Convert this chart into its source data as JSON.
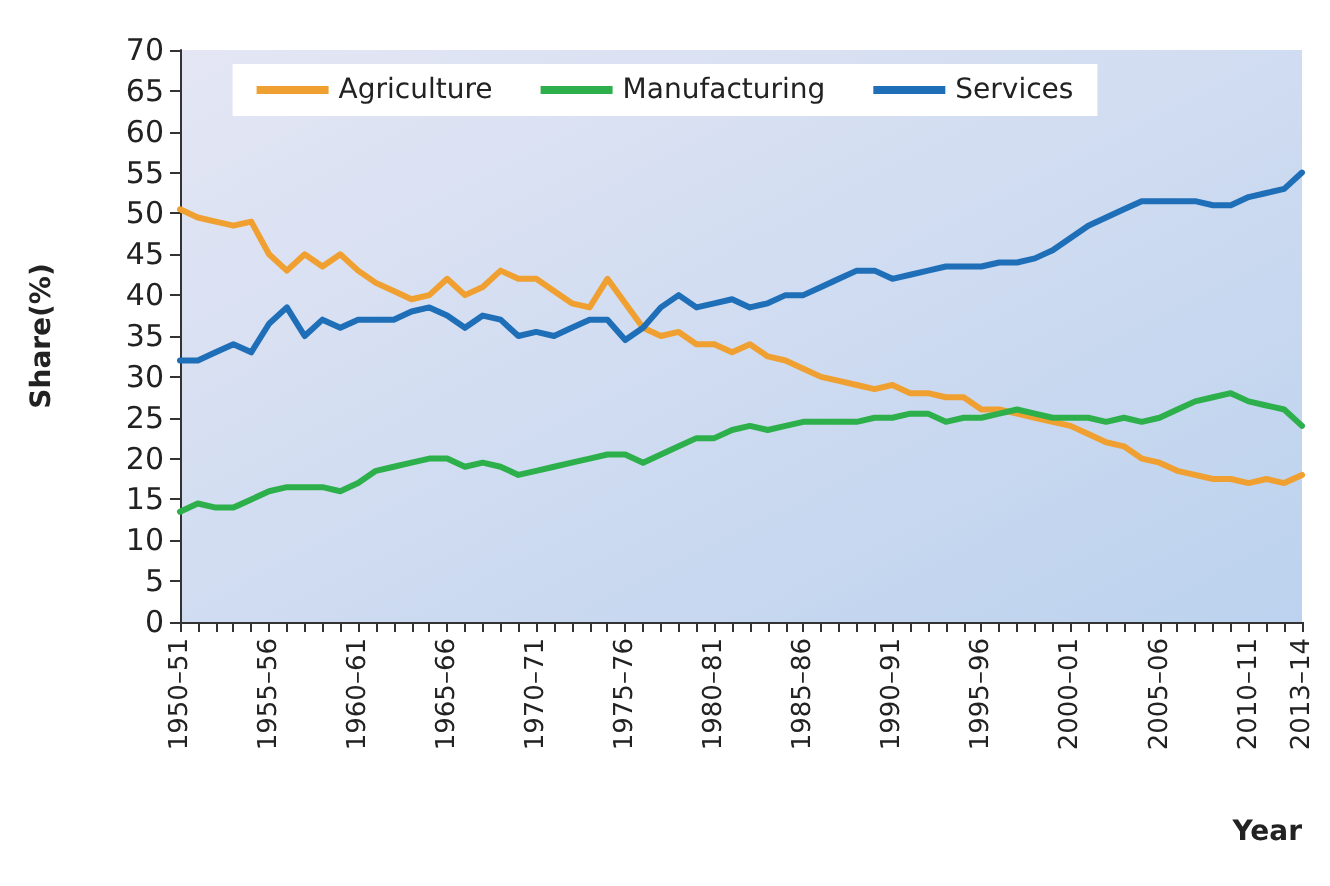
{
  "chart_data": {
    "type": "line",
    "ylabel": "Share(%)",
    "xlabel": "Year",
    "categories": [
      "1950–51",
      null,
      null,
      null,
      null,
      "1955–56",
      null,
      null,
      null,
      null,
      "1960–61",
      null,
      null,
      null,
      null,
      "1965–66",
      null,
      null,
      null,
      null,
      "1970–71",
      null,
      null,
      null,
      null,
      "1975–76",
      null,
      null,
      null,
      null,
      "1980–81",
      null,
      null,
      null,
      null,
      "1985–86",
      null,
      null,
      null,
      null,
      "1990–91",
      null,
      null,
      null,
      null,
      "1995–96",
      null,
      null,
      null,
      null,
      "2000–01",
      null,
      null,
      null,
      null,
      "2005–06",
      null,
      null,
      null,
      null,
      "2010–11",
      null,
      null,
      "2013–14"
    ],
    "series": [
      {
        "name": "Agriculture",
        "color": "#f0a030",
        "values": [
          50.5,
          49.5,
          49,
          48.5,
          49,
          45,
          43,
          45,
          43.5,
          45,
          43,
          41.5,
          40.5,
          39.5,
          40,
          42,
          40,
          41,
          43,
          42,
          42,
          40.5,
          39,
          38.5,
          42,
          39,
          36,
          35,
          35.5,
          34,
          34,
          33,
          34,
          32.5,
          32,
          31,
          30,
          29.5,
          29,
          28.5,
          29,
          28,
          28,
          27.5,
          27.5,
          26,
          26,
          25.5,
          25,
          24.5,
          24,
          23,
          22,
          21.5,
          20,
          19.5,
          18.5,
          18,
          17.5,
          17.5,
          17,
          17.5,
          17,
          18
        ]
      },
      {
        "name": "Manufacturing",
        "color": "#2db04b",
        "values": [
          13.5,
          14.5,
          14,
          14,
          15,
          16,
          16.5,
          16.5,
          16.5,
          16,
          17,
          18.5,
          19,
          19.5,
          20,
          20,
          19,
          19.5,
          19,
          18,
          18.5,
          19,
          19.5,
          20,
          20.5,
          20.5,
          19.5,
          20.5,
          21.5,
          22.5,
          22.5,
          23.5,
          24,
          23.5,
          24,
          24.5,
          24.5,
          24.5,
          24.5,
          25,
          25,
          25.5,
          25.5,
          24.5,
          25,
          25,
          25.5,
          26,
          25.5,
          25,
          25,
          25,
          24.5,
          25,
          24.5,
          25,
          26,
          27,
          27.5,
          28,
          27,
          26.5,
          26,
          24
        ]
      },
      {
        "name": "Services",
        "color": "#1f6fb8",
        "values": [
          32,
          32,
          33,
          34,
          33,
          36.5,
          38.5,
          35,
          37,
          36,
          37,
          37,
          37,
          38,
          38.5,
          37.5,
          36,
          37.5,
          37,
          35,
          35.5,
          35,
          36,
          37,
          37,
          34.5,
          36,
          38.5,
          40,
          38.5,
          39,
          39.5,
          38.5,
          39,
          40,
          40,
          41,
          42,
          43,
          43,
          42,
          42.5,
          43,
          43.5,
          43.5,
          43.5,
          44,
          44,
          44.5,
          45.5,
          47,
          48.5,
          49.5,
          50.5,
          51.5,
          51.5,
          51.5,
          51.5,
          51,
          51,
          52,
          52.5,
          53,
          55
        ]
      }
    ],
    "ylim": [
      0,
      70
    ],
    "yticks": [
      0,
      5,
      10,
      15,
      20,
      25,
      30,
      35,
      40,
      45,
      50,
      55,
      60,
      65,
      70
    ],
    "grid": false,
    "legend": "top",
    "marker": "none",
    "line_style": "solid"
  }
}
